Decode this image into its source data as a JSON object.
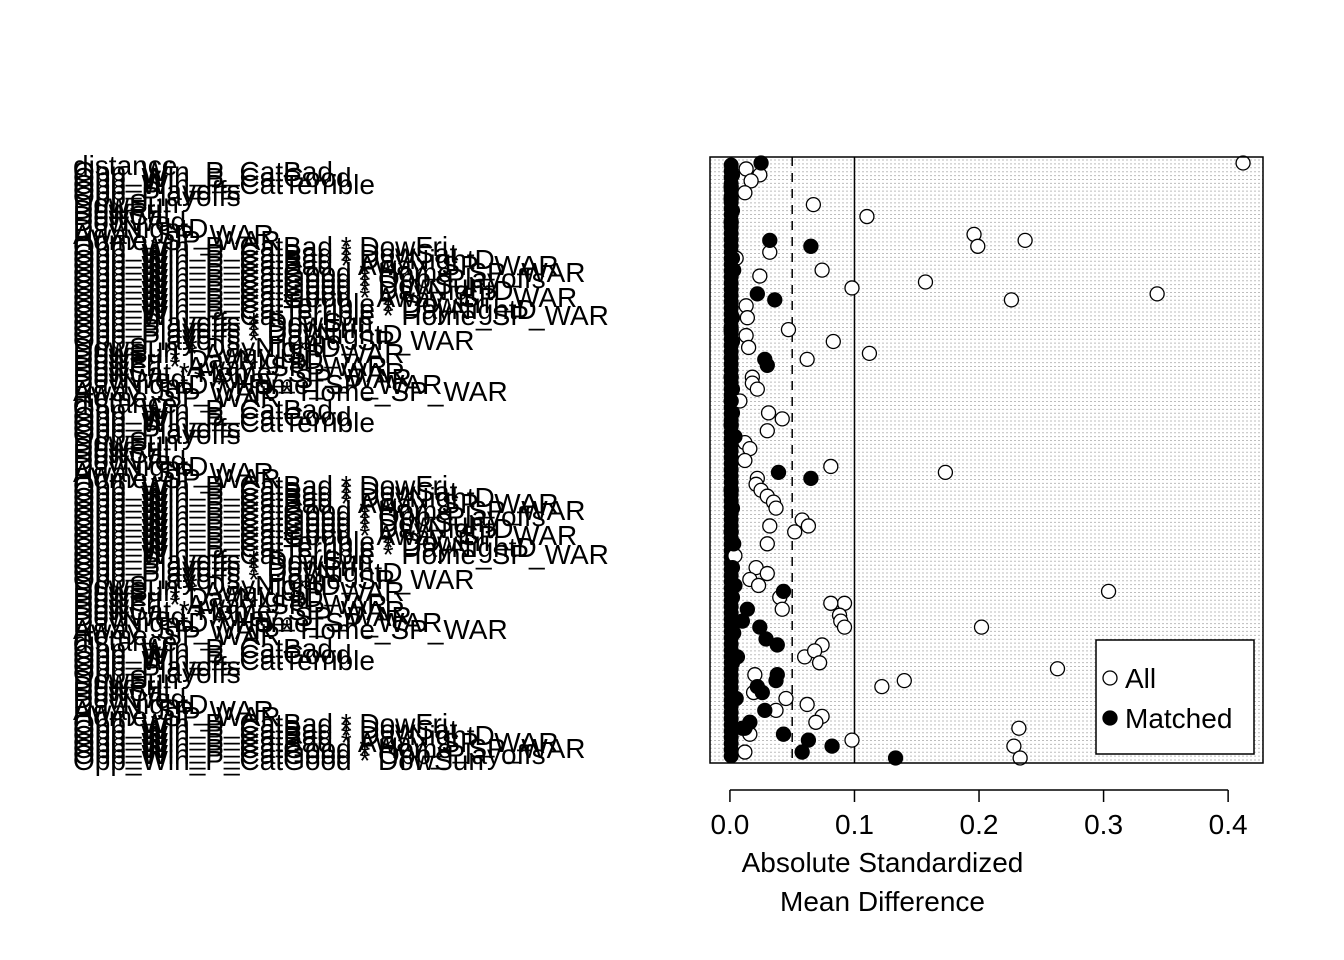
{
  "chart_data": {
    "type": "scatter",
    "xlabel_lines": [
      "Absolute Standardized",
      "Mean Difference"
    ],
    "xlim": [
      -0.016,
      0.428
    ],
    "x_ticks": [
      0.0,
      0.1,
      0.2,
      0.3,
      0.4
    ],
    "x_tick_labels": [
      "0.0",
      "0.1",
      "0.2",
      "0.3",
      "0.4"
    ],
    "reference_lines": [
      {
        "x": 0.05,
        "style": "dashed"
      },
      {
        "x": 0.1,
        "style": "solid"
      }
    ],
    "grid": true,
    "legend_position": "bottom-right",
    "legend": [
      {
        "label": "All",
        "marker": "open-circle"
      },
      {
        "label": "Matched",
        "marker": "filled-circle"
      }
    ],
    "n_rows": 155,
    "covariate_labels": [
      "distance",
      "Opp_Win_P_CatBad",
      "Opp_Win_P_CatGood",
      "Opp_Win_P_CatTerrible",
      "Opp_Playoffs",
      "Opp_Playoffs",
      "DowSun",
      "DowFri",
      "DowSat",
      "DowWed",
      "DayNightD",
      "Away_SP_WAR",
      "Home_SP_WAR",
      "Opp_Win_P_CatBad * DowFri",
      "Opp_Win_P_CatBad * DowSat",
      "Opp_Win_P_CatBad * DayNightD",
      "Opp_Win_P_CatBad * Away_SP_WAR",
      "Opp_Win_P_CatGood * Home_SP_WAR",
      "Opp_Win_P_CatGood * Opp_Playoffs",
      "Opp_Win_P_CatGood * DowSun",
      "Opp_Win_P_CatGood * DayNightD",
      "Opp_Win_P_CatGood * Away_SP_WAR",
      "Opp_Win_P_CatTerrible * DowFri",
      "Opp_Win_P_CatTerrible * DayNightD",
      "Opp_Win_P_CatTerrible * Home_SP_WAR",
      "Opp_Playoffs * DowSun",
      "Opp_Playoffs * DowFri",
      "Opp_Playoffs * DayNightD",
      "Opp_Playoffs * Home_SP_WAR",
      "DowSun * DayNightD",
      "DowSun * Away_SP_WAR",
      "DowFri * DayNightD",
      "DowFri * Away_SP_WAR",
      "DowSat * Home_SP_WAR",
      "DowWed * Away_SP_WAR",
      "DayNightD * Home_SP_WAR",
      "Away_SP_WAR * Home_SP_WAR",
      "Home_SP_WAR"
    ],
    "label_y_positions": [
      165,
      171,
      177,
      184,
      190,
      196,
      203,
      209,
      215,
      221,
      228,
      234,
      240,
      246,
      253,
      259,
      265,
      272,
      278,
      284,
      290,
      297,
      303,
      309,
      315,
      322,
      328,
      334,
      340,
      347,
      353,
      359,
      366,
      372,
      378,
      384,
      391,
      397,
      403,
      409,
      416,
      422,
      428,
      434,
      441,
      447,
      453,
      460,
      466,
      472,
      478,
      485,
      491,
      497,
      503,
      510,
      516,
      522,
      528,
      535,
      541,
      547,
      554,
      560,
      566,
      572,
      579,
      585,
      591,
      597,
      604,
      610,
      616,
      622,
      629,
      635,
      641,
      648,
      654,
      660,
      666,
      673,
      679,
      685,
      691,
      698,
      704,
      710,
      716,
      723,
      729,
      735,
      742,
      748,
      754,
      760
    ],
    "series": [
      {
        "name": "All",
        "marker": "open",
        "points": [
          [
            0.412,
            0
          ],
          [
            0.013,
            1
          ],
          [
            0.024,
            2
          ],
          [
            0.017,
            3
          ],
          [
            0.012,
            5
          ],
          [
            0.067,
            7
          ],
          [
            0.11,
            9
          ],
          [
            0.196,
            12
          ],
          [
            0.237,
            13
          ],
          [
            0.199,
            14
          ],
          [
            0.005,
            16
          ],
          [
            0.032,
            15
          ],
          [
            0.074,
            18
          ],
          [
            0.157,
            20
          ],
          [
            0.024,
            19
          ],
          [
            0.098,
            21
          ],
          [
            0.343,
            22
          ],
          [
            0.226,
            23
          ],
          [
            0.013,
            24
          ],
          [
            0.014,
            26
          ],
          [
            0.047,
            28
          ],
          [
            0.083,
            30
          ],
          [
            0.013,
            29
          ],
          [
            0.015,
            31
          ],
          [
            0.112,
            32
          ],
          [
            0.062,
            33
          ],
          [
            0.018,
            36
          ],
          [
            0.018,
            37
          ],
          [
            0.022,
            38
          ],
          [
            0.008,
            40
          ],
          [
            0.031,
            42
          ],
          [
            0.042,
            43
          ],
          [
            0.03,
            45
          ],
          [
            0.012,
            47
          ],
          [
            0.016,
            48
          ],
          [
            0.012,
            50
          ],
          [
            0.081,
            51
          ],
          [
            0.173,
            52
          ],
          [
            0.022,
            53
          ],
          [
            0.021,
            54
          ],
          [
            0.025,
            55
          ],
          [
            0.03,
            56
          ],
          [
            0.035,
            57
          ],
          [
            0.037,
            58
          ],
          [
            0.058,
            60
          ],
          [
            0.032,
            61
          ],
          [
            0.063,
            61
          ],
          [
            0.052,
            62
          ],
          [
            0.03,
            64
          ],
          [
            0.004,
            66
          ],
          [
            0.021,
            68
          ],
          [
            0.03,
            69
          ],
          [
            0.016,
            70
          ],
          [
            0.023,
            71
          ],
          [
            0.304,
            72
          ],
          [
            0.04,
            73
          ],
          [
            0.092,
            74
          ],
          [
            0.081,
            74
          ],
          [
            0.042,
            75
          ],
          [
            0.088,
            76
          ],
          [
            0.089,
            77
          ],
          [
            0.092,
            78
          ],
          [
            0.202,
            78
          ],
          [
            0.074,
            81
          ],
          [
            0.06,
            83
          ],
          [
            0.068,
            82
          ],
          [
            0.072,
            84
          ],
          [
            0.263,
            85
          ],
          [
            0.02,
            86
          ],
          [
            0.14,
            87
          ],
          [
            0.122,
            88
          ],
          [
            0.019,
            89
          ],
          [
            0.045,
            90
          ],
          [
            0.062,
            91
          ],
          [
            0.037,
            92
          ],
          [
            0.074,
            93
          ],
          [
            0.069,
            94
          ],
          [
            0.232,
            95
          ],
          [
            0.016,
            96
          ],
          [
            0.098,
            97
          ],
          [
            0.228,
            98
          ],
          [
            0.012,
            99
          ],
          [
            0.233,
            100
          ]
        ]
      },
      {
        "name": "Matched",
        "marker": "filled",
        "points": [
          [
            0.025,
            0
          ],
          [
            0.002,
            2
          ],
          [
            0.001,
            4
          ],
          [
            0.001,
            6
          ],
          [
            0.002,
            8
          ],
          [
            0.001,
            10
          ],
          [
            0.032,
            13
          ],
          [
            0.065,
            14
          ],
          [
            0.002,
            16
          ],
          [
            0.003,
            18
          ],
          [
            0.022,
            22
          ],
          [
            0.036,
            23
          ],
          [
            0.002,
            26
          ],
          [
            0.001,
            28
          ],
          [
            0.002,
            30
          ],
          [
            0.028,
            33
          ],
          [
            0.03,
            34
          ],
          [
            0.001,
            36
          ],
          [
            0.002,
            38
          ],
          [
            0.001,
            40
          ],
          [
            0.002,
            42
          ],
          [
            0.001,
            44
          ],
          [
            0.004,
            46
          ],
          [
            0.039,
            52
          ],
          [
            0.065,
            53
          ],
          [
            0.001,
            55
          ],
          [
            0.002,
            58
          ],
          [
            0.001,
            62
          ],
          [
            0.003,
            64
          ],
          [
            0.002,
            68
          ],
          [
            0.004,
            71
          ],
          [
            0.043,
            72
          ],
          [
            0.002,
            73
          ],
          [
            0.014,
            75
          ],
          [
            0.01,
            77
          ],
          [
            0.024,
            78
          ],
          [
            0.029,
            80
          ],
          [
            0.038,
            81
          ],
          [
            0.003,
            79
          ],
          [
            0.006,
            83
          ],
          [
            0.002,
            84
          ],
          [
            0.038,
            86
          ],
          [
            0.037,
            87
          ],
          [
            0.022,
            88
          ],
          [
            0.026,
            89
          ],
          [
            0.005,
            90
          ],
          [
            0.028,
            92
          ],
          [
            0.016,
            94
          ],
          [
            0.012,
            95
          ],
          [
            0.043,
            96
          ],
          [
            0.063,
            97
          ],
          [
            0.082,
            98
          ],
          [
            0.058,
            99
          ],
          [
            0.133,
            100
          ],
          [
            0.01,
            95
          ]
        ]
      }
    ]
  }
}
